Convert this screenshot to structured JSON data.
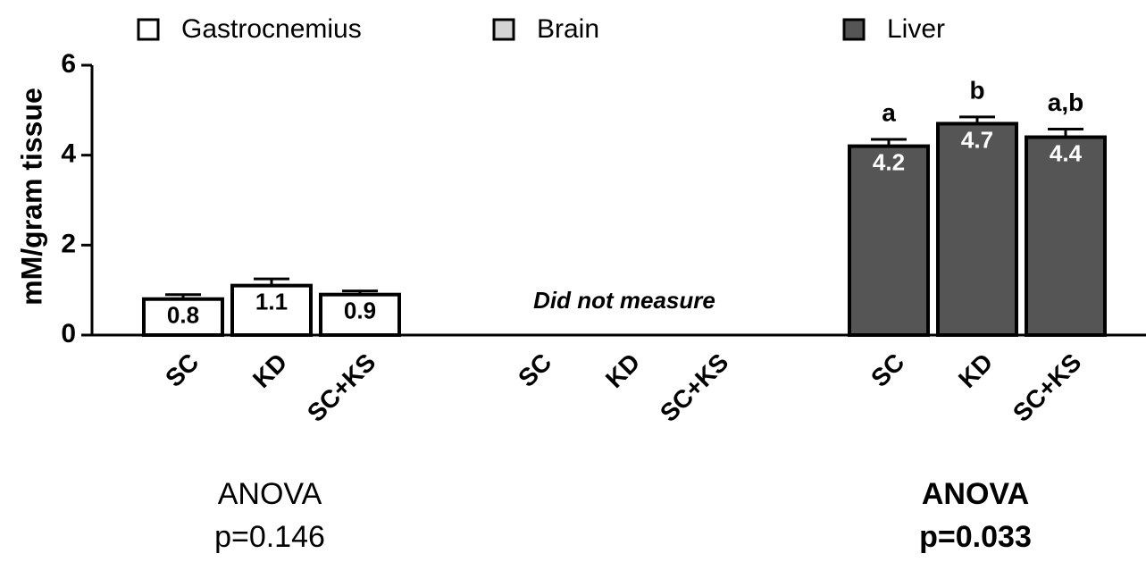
{
  "chart_data": {
    "type": "bar",
    "ylabel": "mM/gram tissue",
    "ylim": [
      0,
      6
    ],
    "yticks": [
      0,
      2,
      4,
      6
    ],
    "grid": false,
    "series": [
      {
        "name": "Gastrocnemius",
        "color": "#ffffff",
        "categories": [
          "SC",
          "KD",
          "SC+KS"
        ],
        "values": [
          0.8,
          1.1,
          0.9
        ],
        "errors": [
          0.1,
          0.15,
          0.08
        ],
        "anova": {
          "label": "ANOVA",
          "p": "p=0.146"
        }
      },
      {
        "name": "Brain",
        "color": "#d3d3d3",
        "categories": [
          "SC",
          "KD",
          "SC+KS"
        ],
        "values": [
          null,
          null,
          null
        ],
        "note": "Did not measure"
      },
      {
        "name": "Liver",
        "color": "#555555",
        "categories": [
          "SC",
          "KD",
          "SC+KS"
        ],
        "values": [
          4.2,
          4.7,
          4.4
        ],
        "errors": [
          0.15,
          0.15,
          0.18
        ],
        "letters": [
          "a",
          "b",
          "a,b"
        ],
        "anova": {
          "label": "ANOVA",
          "p": "p=0.033"
        }
      }
    ]
  }
}
